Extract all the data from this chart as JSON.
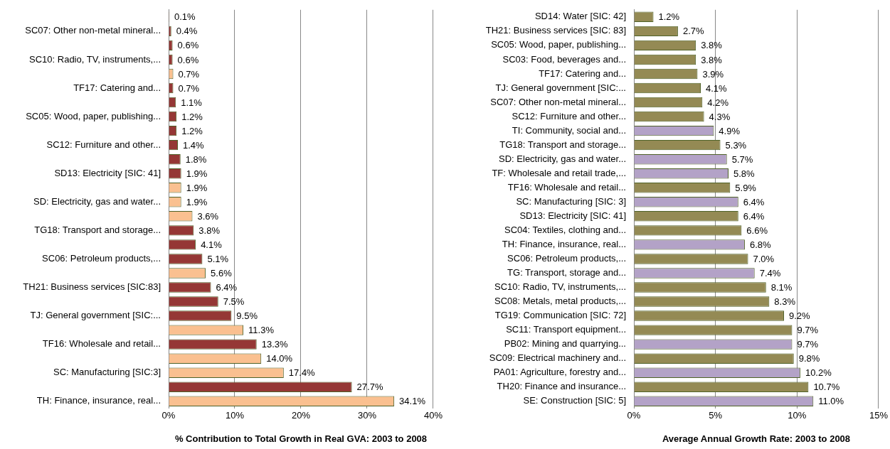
{
  "chart_data": [
    {
      "type": "bar",
      "orientation": "horizontal",
      "xlabel": "% Contribution to Total Growth in Real GVA: 2003 to 2008",
      "categories": [
        null,
        "SC07: Other non-metal mineral...",
        null,
        "SC10: Radio, TV, instruments,...",
        null,
        "TF17: Catering and...",
        null,
        "SC05: Wood, paper, publishing...",
        null,
        "SC12: Furniture and other...",
        null,
        "SD13: Electricity [SIC: 41]",
        null,
        "SD: Electricity, gas and water...",
        null,
        "TG18: Transport and storage...",
        null,
        "SC06: Petroleum products,...",
        null,
        "TH21: Business services [SIC:83]",
        null,
        "TJ: General government [SIC:...",
        null,
        "TF16: Wholesale and retail...",
        null,
        "SC: Manufacturing [SIC:3]",
        null,
        "TH: Finance, insurance, real..."
      ],
      "values": [
        0.1,
        0.4,
        0.6,
        0.6,
        0.7,
        0.7,
        1.1,
        1.2,
        1.2,
        1.4,
        1.8,
        1.9,
        1.9,
        1.9,
        3.6,
        3.8,
        4.1,
        5.1,
        5.6,
        6.4,
        7.5,
        9.5,
        11.3,
        13.3,
        14.0,
        17.4,
        27.7,
        34.1
      ],
      "value_labels": [
        "0.1%",
        "0.4%",
        "0.6%",
        "0.6%",
        "0.7%",
        "0.7%",
        "1.1%",
        "1.2%",
        "1.2%",
        "1.4%",
        "1.8%",
        "1.9%",
        "1.9%",
        "1.9%",
        "3.6%",
        "3.8%",
        "4.1%",
        "5.1%",
        "5.6%",
        "6.4%",
        "7.5%",
        "9.5%",
        "11.3%",
        "13.3%",
        "14.0%",
        "17.4%",
        "27.7%",
        "34.1%"
      ],
      "colors": [
        "#953735",
        "#953735",
        "#953735",
        "#953735",
        "#fac090",
        "#953735",
        "#953735",
        "#953735",
        "#953735",
        "#953735",
        "#953735",
        "#953735",
        "#fac090",
        "#fac090",
        "#fac090",
        "#953735",
        "#953735",
        "#953735",
        "#fac090",
        "#953735",
        "#953735",
        "#953735",
        "#fac090",
        "#953735",
        "#fac090",
        "#fac090",
        "#953735",
        "#fac090"
      ],
      "xlim": [
        0,
        40
      ],
      "xticks": [
        {
          "value": 0,
          "label": "0%"
        },
        {
          "value": 10,
          "label": "10%"
        },
        {
          "value": 20,
          "label": "20%"
        },
        {
          "value": 30,
          "label": "30%"
        },
        {
          "value": 40,
          "label": "40%"
        }
      ],
      "grid": "x",
      "legend": false
    },
    {
      "type": "bar",
      "orientation": "horizontal",
      "xlabel": "Average Annual Growth Rate: 2003 to 2008",
      "categories": [
        "SD14: Water [SIC: 42]",
        "TH21: Business services [SIC: 83]",
        "SC05: Wood, paper, publishing...",
        "SC03: Food, beverages and...",
        "TF17: Catering and...",
        "TJ: General government [SIC:...",
        "SC07: Other non-metal mineral...",
        "SC12: Furniture and other...",
        "TI: Community, social and...",
        "TG18: Transport and storage...",
        "SD: Electricity, gas and water...",
        "TF: Wholesale and retail trade,...",
        "TF16: Wholesale and retail...",
        "SC: Manufacturing [SIC: 3]",
        "SD13: Electricity [SIC: 41]",
        "SC04: Textiles, clothing and...",
        "TH: Finance, insurance, real...",
        "SC06: Petroleum products,...",
        "TG: Transport, storage and...",
        "SC10: Radio, TV, instruments,...",
        "SC08: Metals, metal products,...",
        "TG19: Communication [SIC: 72]",
        "SC11: Transport equipment...",
        "PB02: Mining and quarrying...",
        "SC09: Electrical machinery and...",
        "PA01: Agriculture, forestry and...",
        "TH20: Finance and insurance...",
        "SE: Construction [SIC: 5]"
      ],
      "values": [
        1.2,
        2.7,
        3.8,
        3.8,
        3.9,
        4.1,
        4.2,
        4.3,
        4.9,
        5.3,
        5.7,
        5.8,
        5.9,
        6.4,
        6.4,
        6.6,
        6.8,
        7.0,
        7.4,
        8.1,
        8.3,
        9.2,
        9.7,
        9.7,
        9.8,
        10.2,
        10.7,
        11.0
      ],
      "value_labels": [
        "1.2%",
        "2.7%",
        "3.8%",
        "3.8%",
        "3.9%",
        "4.1%",
        "4.2%",
        "4.3%",
        "4.9%",
        "5.3%",
        "5.7%",
        "5.8%",
        "5.9%",
        "6.4%",
        "6.4%",
        "6.6%",
        "6.8%",
        "7.0%",
        "7.4%",
        "8.1%",
        "8.3%",
        "9.2%",
        "9.7%",
        "9.7%",
        "9.8%",
        "10.2%",
        "10.7%",
        "11.0%"
      ],
      "colors": [
        "#948a54",
        "#948a54",
        "#948a54",
        "#948a54",
        "#948a54",
        "#948a54",
        "#948a54",
        "#948a54",
        "#b3a2c7",
        "#948a54",
        "#b3a2c7",
        "#b3a2c7",
        "#948a54",
        "#b3a2c7",
        "#948a54",
        "#948a54",
        "#b3a2c7",
        "#948a54",
        "#b3a2c7",
        "#948a54",
        "#948a54",
        "#948a54",
        "#948a54",
        "#b3a2c7",
        "#948a54",
        "#b3a2c7",
        "#948a54",
        "#b3a2c7"
      ],
      "xlim": [
        0,
        15
      ],
      "xticks": [
        {
          "value": 0,
          "label": "0%"
        },
        {
          "value": 5,
          "label": "5%"
        },
        {
          "value": 10,
          "label": "10%"
        },
        {
          "value": 15,
          "label": "15%"
        }
      ],
      "grid": "x",
      "legend": false
    }
  ]
}
